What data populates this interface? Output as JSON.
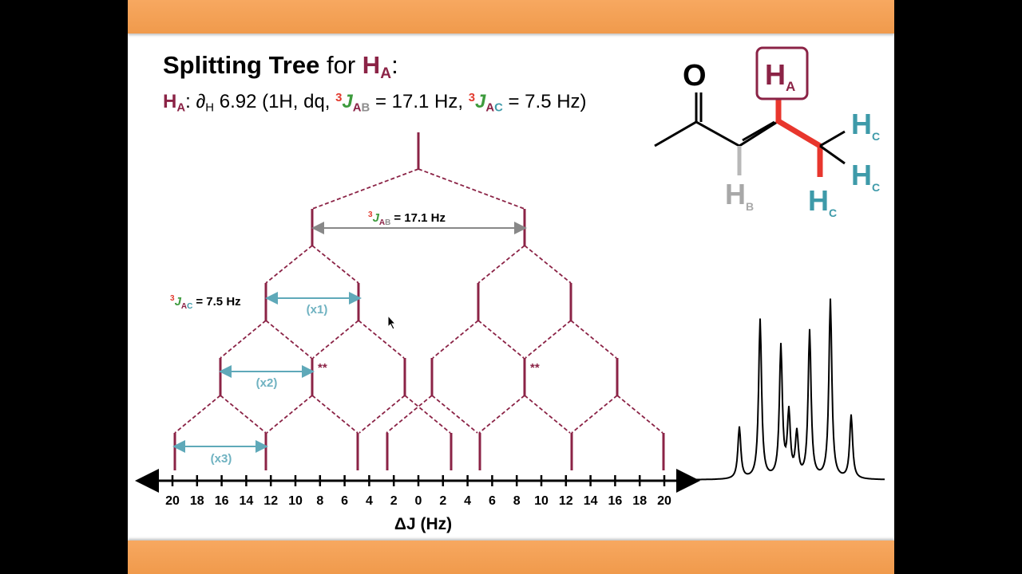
{
  "slide": {
    "title_bold": "Splitting Tree",
    "title_for": "for",
    "title_h": "H",
    "title_sub": "A",
    "title_colon": ":"
  },
  "nmr": {
    "h": "H",
    "h_sub": "A",
    "colon": ":",
    "delta": "∂",
    "delta_sub": "H",
    "shift_text": " 6.92 (1H, dq, ",
    "sup3": "3",
    "j": "J",
    "ab_a": "A",
    "ab_b": "B",
    "jab_value": " = 17.1 Hz, ",
    "ac_a": "A",
    "ac_c": "C",
    "jac_value": " = 7.5 Hz)"
  },
  "tree": {
    "jab_label_value": "= 17.1 Hz",
    "jac_label_value": "= 7.5 Hz",
    "x1": "(x1)",
    "x2": "(x2)",
    "x3": "(x3)",
    "stars": "**",
    "axis_ticks": [
      "20",
      "18",
      "16",
      "14",
      "12",
      "10",
      "8",
      "6",
      "4",
      "2",
      "0",
      "2",
      "4",
      "6",
      "8",
      "10",
      "12",
      "14",
      "16",
      "18",
      "20"
    ],
    "axis_label": "ΔJ (Hz)"
  },
  "molecule": {
    "oxygen": "O",
    "ha": "H",
    "ha_sub": "A",
    "hb": "H",
    "hb_sub": "B",
    "hc": "H",
    "hc_sub": "C"
  },
  "colors": {
    "maroon": "#8b2346",
    "red": "#e23b2f",
    "green": "#3d9b3d",
    "teal": "#3e9aa9",
    "grey": "#8e8e8e",
    "orange_bar": "#f3a055"
  }
}
